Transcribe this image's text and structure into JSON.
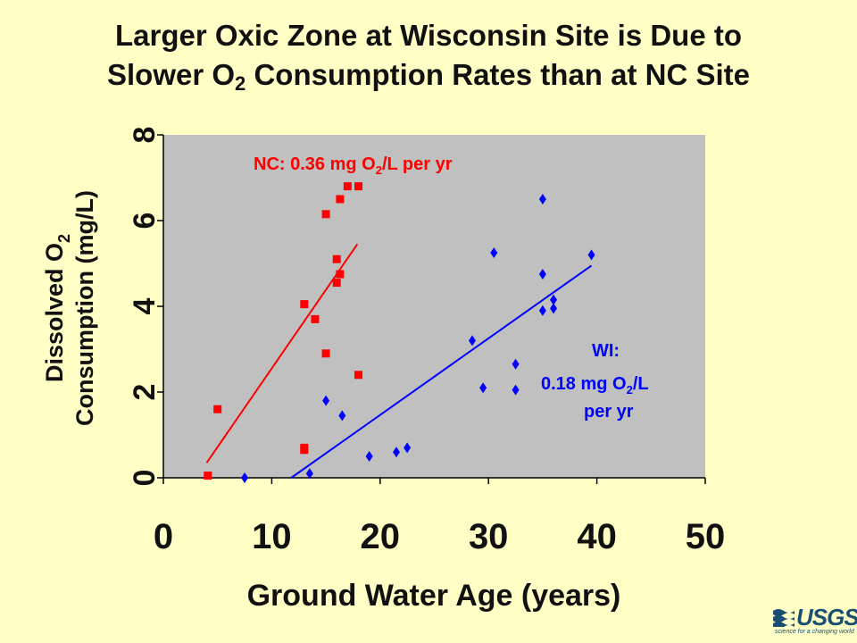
{
  "title": {
    "line1": "Larger Oxic Zone at Wisconsin Site is Due to",
    "line2_pre": "Slower O",
    "line2_sub": "2",
    "line2_post": " Consumption Rates than at NC Site"
  },
  "logo": {
    "text": "USGS",
    "tagline": "science for a changing world"
  },
  "colors": {
    "background": "#FFFFC6",
    "plot_area": "#C0C0C0",
    "nc": "#FF0000",
    "wi": "#0000FF",
    "text": "#111111",
    "logo": "#1B4F72"
  },
  "chart_data": {
    "type": "scatter",
    "xlabel": "Ground Water Age (years)",
    "ylabel_line1_pre": "Dissolved O",
    "ylabel_line1_sub": "2",
    "ylabel_line2": "Consumption (mg/L)",
    "xlim": [
      0,
      50
    ],
    "ylim": [
      0,
      8
    ],
    "xticks": [
      0,
      10,
      20,
      30,
      40,
      50
    ],
    "yticks": [
      0,
      2,
      4,
      6,
      8
    ],
    "grid": false,
    "series": [
      {
        "key": "nc",
        "marker": "square",
        "color": "#FF0000",
        "points": [
          [
            4.1,
            0.05
          ],
          [
            5.0,
            1.6
          ],
          [
            13.0,
            0.7
          ],
          [
            13.0,
            0.65
          ],
          [
            13.0,
            4.05
          ],
          [
            14.0,
            3.7
          ],
          [
            15.0,
            2.9
          ],
          [
            15.0,
            6.15
          ],
          [
            16.0,
            4.55
          ],
          [
            16.0,
            5.1
          ],
          [
            16.3,
            4.75
          ],
          [
            16.3,
            6.5
          ],
          [
            17.0,
            6.8
          ],
          [
            18.0,
            6.8
          ],
          [
            18.0,
            2.4
          ]
        ],
        "trend": [
          [
            4.0,
            0.35
          ],
          [
            17.9,
            5.45
          ]
        ],
        "label_pre": "NC: 0.36 mg O",
        "label_sub": "2",
        "label_post": "/L per yr"
      },
      {
        "key": "wi",
        "marker": "diamond",
        "color": "#0000FF",
        "points": [
          [
            7.5,
            0.0
          ],
          [
            13.5,
            0.1
          ],
          [
            15.0,
            1.8
          ],
          [
            16.5,
            1.45
          ],
          [
            19.0,
            0.5
          ],
          [
            21.5,
            0.6
          ],
          [
            22.5,
            0.7
          ],
          [
            28.5,
            3.2
          ],
          [
            29.5,
            2.1
          ],
          [
            30.5,
            5.25
          ],
          [
            32.5,
            2.65
          ],
          [
            32.5,
            2.05
          ],
          [
            35.0,
            6.5
          ],
          [
            35.0,
            4.75
          ],
          [
            35.0,
            3.9
          ],
          [
            36.0,
            4.15
          ],
          [
            36.0,
            3.95
          ],
          [
            39.5,
            5.2
          ]
        ],
        "trend": [
          [
            11.8,
            0.0
          ],
          [
            39.5,
            4.95
          ]
        ],
        "label_line1": "WI:",
        "label_line2_pre": "0.18 mg O",
        "label_line2_sub": "2",
        "label_line2_post": "/L",
        "label_line3": "per yr"
      }
    ]
  }
}
